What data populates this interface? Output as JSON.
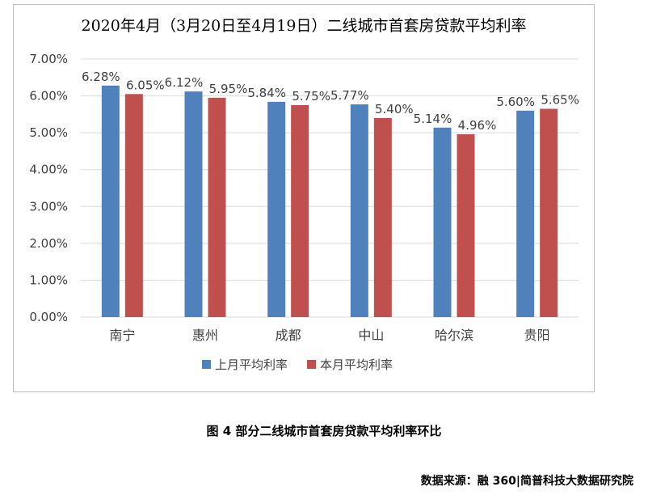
{
  "chart_data": {
    "type": "bar",
    "title": "2020年4月（3月20日至4月19日）二线城市首套房贷款平均利率",
    "categories": [
      "南宁",
      "惠州",
      "成都",
      "中山",
      "哈尔滨",
      "贵阳"
    ],
    "series": [
      {
        "name": "上月平均利率",
        "color": "#4F81BD",
        "values": [
          6.28,
          6.12,
          5.84,
          5.77,
          5.14,
          5.6
        ],
        "labels": [
          "6.28%",
          "6.12%",
          "5.84%",
          "5.77%",
          "5.14%",
          "5.60%"
        ]
      },
      {
        "name": "本月平均利率",
        "color": "#C0504D",
        "values": [
          6.05,
          5.95,
          5.75,
          5.4,
          4.96,
          5.65
        ],
        "labels": [
          "6.05%",
          "5.95%",
          "5.75%",
          "5.40%",
          "4.96%",
          "5.65%"
        ]
      }
    ],
    "ylim": [
      0,
      7
    ],
    "yticks": [
      "0.00%",
      "1.00%",
      "2.00%",
      "3.00%",
      "4.00%",
      "5.00%",
      "6.00%",
      "7.00%"
    ],
    "grid": true,
    "legend": "bottom"
  },
  "caption": "图 4  部分二线城市首套房贷款平均利率环比",
  "source": "数据来源：融 360|简普科技大数据研究院"
}
